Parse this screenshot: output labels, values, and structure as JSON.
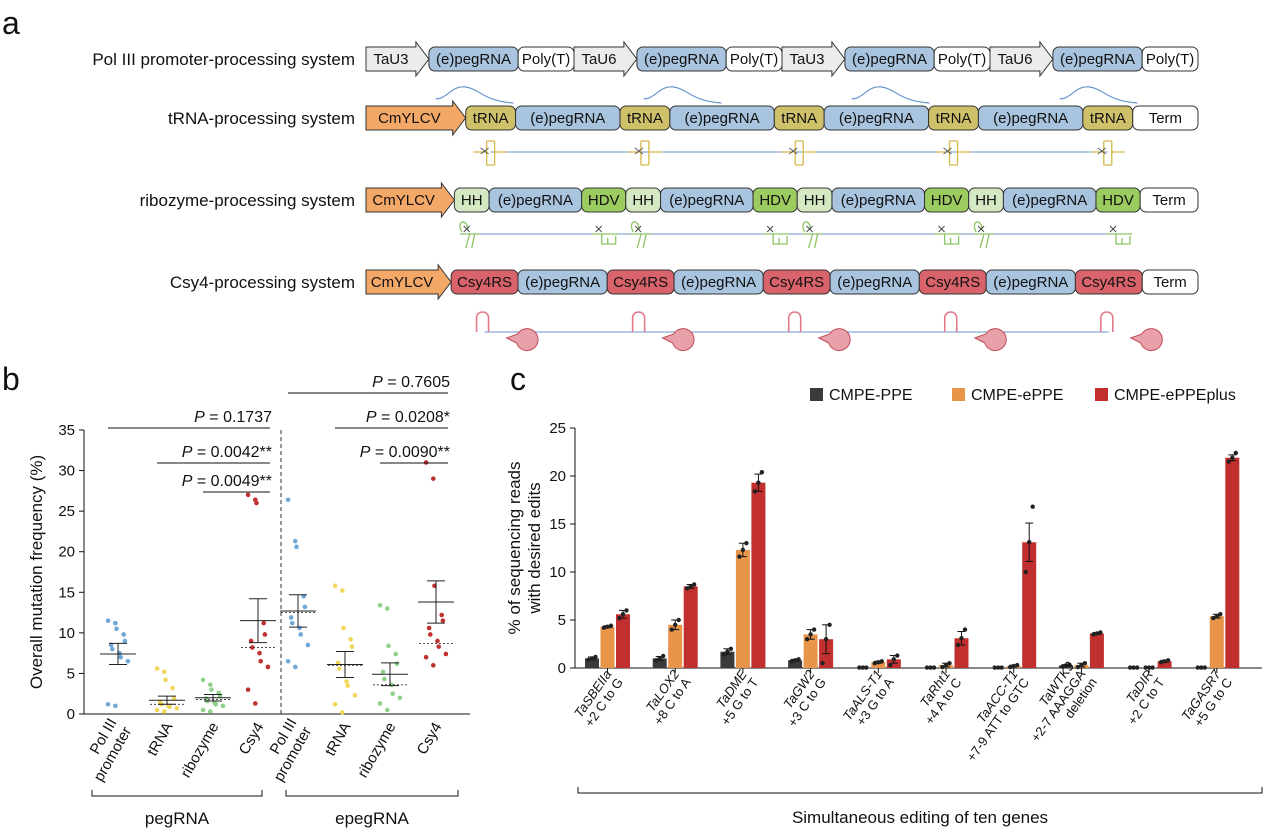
{
  "panels": {
    "a": "a",
    "b": "b",
    "c": "c"
  },
  "panel_a": {
    "rows": [
      {
        "label": "Pol III promoter-processing system",
        "segments": [
          {
            "text": "TaU3",
            "kind": "promoter"
          },
          {
            "text": "(e)pegRNA",
            "kind": "peg"
          },
          {
            "text": "Poly(T)",
            "kind": "term"
          },
          {
            "text": "TaU6",
            "kind": "promoter"
          },
          {
            "text": "(e)pegRNA",
            "kind": "peg"
          },
          {
            "text": "Poly(T)",
            "kind": "term"
          },
          {
            "text": "TaU3",
            "kind": "promoter"
          },
          {
            "text": "(e)pegRNA",
            "kind": "peg"
          },
          {
            "text": "Poly(T)",
            "kind": "term"
          },
          {
            "text": "TaU6",
            "kind": "promoter"
          },
          {
            "text": "(e)pegRNA",
            "kind": "peg"
          },
          {
            "text": "Poly(T)",
            "kind": "term"
          }
        ]
      },
      {
        "label": "tRNA-processing system",
        "segments": [
          {
            "text": "CmYLCV",
            "kind": "cmylcv"
          },
          {
            "text": "tRNA",
            "kind": "trna"
          },
          {
            "text": "(e)pegRNA",
            "kind": "peg"
          },
          {
            "text": "tRNA",
            "kind": "trna"
          },
          {
            "text": "(e)pegRNA",
            "kind": "peg"
          },
          {
            "text": "tRNA",
            "kind": "trna"
          },
          {
            "text": "(e)pegRNA",
            "kind": "peg"
          },
          {
            "text": "tRNA",
            "kind": "trna"
          },
          {
            "text": "(e)pegRNA",
            "kind": "peg"
          },
          {
            "text": "tRNA",
            "kind": "trna"
          },
          {
            "text": "Term",
            "kind": "term"
          }
        ]
      },
      {
        "label": "ribozyme-processing system",
        "segments": [
          {
            "text": "CmYLCV",
            "kind": "cmylcv"
          },
          {
            "text": "HH",
            "kind": "hh"
          },
          {
            "text": "(e)pegRNA",
            "kind": "peg"
          },
          {
            "text": "HDV",
            "kind": "hdv"
          },
          {
            "text": "HH",
            "kind": "hh"
          },
          {
            "text": "(e)pegRNA",
            "kind": "peg"
          },
          {
            "text": "HDV",
            "kind": "hdv"
          },
          {
            "text": "HH",
            "kind": "hh"
          },
          {
            "text": "(e)pegRNA",
            "kind": "peg"
          },
          {
            "text": "HDV",
            "kind": "hdv"
          },
          {
            "text": "HH",
            "kind": "hh"
          },
          {
            "text": "(e)pegRNA",
            "kind": "peg"
          },
          {
            "text": "HDV",
            "kind": "hdv"
          },
          {
            "text": "Term",
            "kind": "term"
          }
        ]
      },
      {
        "label": "Csy4-processing system",
        "segments": [
          {
            "text": "CmYLCV",
            "kind": "cmylcv"
          },
          {
            "text": "Csy4RS",
            "kind": "csy4"
          },
          {
            "text": "(e)pegRNA",
            "kind": "peg"
          },
          {
            "text": "Csy4RS",
            "kind": "csy4"
          },
          {
            "text": "(e)pegRNA",
            "kind": "peg"
          },
          {
            "text": "Csy4RS",
            "kind": "csy4"
          },
          {
            "text": "(e)pegRNA",
            "kind": "peg"
          },
          {
            "text": "Csy4RS",
            "kind": "csy4"
          },
          {
            "text": "(e)pegRNA",
            "kind": "peg"
          },
          {
            "text": "Csy4RS",
            "kind": "csy4"
          },
          {
            "text": "Term",
            "kind": "term"
          }
        ]
      }
    ],
    "colors": {
      "promoter": "#ececec",
      "peg": "#a9c4de",
      "term": "#ffffff",
      "cmylcv": "#f3a867",
      "trna": "#cfc06a",
      "hh": "#d4e8c4",
      "hdv": "#9ccc5f",
      "csy4": "#d9636b",
      "rna_line": "#6a95cc",
      "trna_glyph": "#d4b84a",
      "ribo_glyph": "#8cc466",
      "csy4_glyph": "#e07a8a"
    }
  },
  "chart_data": [
    {
      "type": "scatter",
      "panel": "b",
      "ylabel": "Overall mutation frequency (%)",
      "ylim": [
        0,
        35
      ],
      "yticks": [
        "0",
        "5",
        "10",
        "15",
        "20",
        "25",
        "30",
        "35"
      ],
      "categories": [
        "Pol III promoter",
        "tRNA",
        "ribozyme",
        "Csy4",
        "Pol III promoter",
        "tRNA",
        "ribozyme",
        "Csy4"
      ],
      "category_lines": [
        [
          "Pol III",
          "promoter"
        ],
        [
          "tRNA"
        ],
        [
          "ribozyme"
        ],
        [
          "Csy4"
        ],
        [
          "Pol III",
          "promoter"
        ],
        [
          "tRNA"
        ],
        [
          "ribozyme"
        ],
        [
          "Csy4"
        ]
      ],
      "groups": [
        "pegRNA",
        "epegRNA"
      ],
      "series_colors": [
        "#6fa8d6",
        "#f2d65a",
        "#8fd08a",
        "#c0302e",
        "#6fa8d6",
        "#f2d65a",
        "#8fd08a",
        "#c0302e"
      ],
      "points": [
        [
          11.5,
          11.2,
          10.5,
          9.8,
          9.0,
          8.5,
          8.0,
          7.5,
          7.0,
          6.5,
          1.2,
          1.0
        ],
        [
          5.6,
          5.2,
          4.2,
          3.2,
          1.9,
          1.5,
          1.2,
          1.0,
          0.9,
          0.7,
          0.5,
          0.3
        ],
        [
          4.2,
          3.6,
          3.0,
          2.6,
          2.2,
          1.9,
          1.6,
          1.4,
          1.2,
          1.0,
          0.5,
          0.3
        ],
        [
          27.0,
          26.4,
          26.0,
          11.2,
          9.8,
          9.0,
          8.2,
          7.5,
          6.5,
          5.8,
          3.0,
          1.3
        ],
        [
          26.4,
          21.3,
          20.6,
          14.5,
          13.2,
          11.9,
          11.2,
          10.6,
          9.8,
          8.5,
          6.5,
          5.8
        ],
        [
          15.8,
          15.2,
          10.6,
          9.2,
          8.3,
          6.3,
          5.6,
          4.0,
          3.5,
          2.3,
          1.2,
          0.2
        ],
        [
          13.4,
          13.0,
          8.4,
          7.4,
          6.2,
          5.2,
          4.3,
          3.6,
          2.5,
          2.0,
          1.3,
          0.5
        ],
        [
          31.0,
          29.0,
          15.8,
          12.2,
          11.5,
          10.6,
          9.8,
          9.0,
          8.3,
          7.4,
          7.0,
          6.0
        ]
      ],
      "means": [
        7.4,
        1.7,
        2.0,
        11.5,
        12.7,
        6.1,
        4.9,
        13.8
      ],
      "sem": [
        1.3,
        0.5,
        0.4,
        2.7,
        2.0,
        1.6,
        1.4,
        2.6
      ],
      "medians": [
        7.4,
        1.2,
        1.8,
        8.2,
        12.5,
        6.0,
        3.6,
        8.7
      ],
      "comparisons": [
        {
          "label": "P = 0.1737",
          "prefix": "P",
          "rest": " = 0.1737",
          "from": 0,
          "to": 3
        },
        {
          "label": "P = 0.0042**",
          "prefix": "P",
          "rest": " = 0.0042**",
          "from": 1,
          "to": 3
        },
        {
          "label": "P = 0.0049**",
          "prefix": "P",
          "rest": " = 0.0049**",
          "from": 2,
          "to": 3
        },
        {
          "label": "P = 0.7605",
          "prefix": "P",
          "rest": " = 0.7605",
          "from": 4,
          "to": 7
        },
        {
          "label": "P = 0.0208*",
          "prefix": "P",
          "rest": " = 0.0208*",
          "from": 5,
          "to": 7
        },
        {
          "label": "P = 0.0090**",
          "prefix": "P",
          "rest": " = 0.0090**",
          "from": 6,
          "to": 7
        }
      ]
    },
    {
      "type": "bar",
      "panel": "c",
      "ylabel_lines": [
        "% of sequencing reads",
        "with desired edits"
      ],
      "xlabel": "Simultaneous editing of ten genes",
      "ylim": [
        0,
        25
      ],
      "yticks": [
        "0",
        "5",
        "10",
        "15",
        "20",
        "25"
      ],
      "categories": [
        {
          "gene": "TaSBEIIa",
          "edit": "+2 C to G"
        },
        {
          "gene": "TaLOX2",
          "edit": "+8 C to A"
        },
        {
          "gene": "TaDME",
          "edit": "+5 G to T"
        },
        {
          "gene": "TaGW2",
          "edit": "+3 C to G"
        },
        {
          "gene": "TaALS-T1",
          "edit": "+3 G to A"
        },
        {
          "gene": "TaRht1",
          "edit": "+4 A to C"
        },
        {
          "gene": "TaACC-T1",
          "edit": "+7-9 ATT to GTC"
        },
        {
          "gene": "TaWTK3",
          "edit": "+2-7 AAAGGA",
          "edit2": "deletion"
        },
        {
          "gene": "TaDIR",
          "edit": "+2 C to T"
        },
        {
          "gene": "TaGASR7",
          "edit": "+5 G to C"
        }
      ],
      "series": [
        {
          "name": "CMPE-PPE",
          "color": "#3a3a3a",
          "values": [
            1.0,
            1.0,
            1.7,
            0.8,
            0.05,
            0.05,
            0.05,
            0.25,
            0.05,
            0.05
          ],
          "errors": [
            0.15,
            0.2,
            0.3,
            0.1,
            0.0,
            0.0,
            0.0,
            0.1,
            0.0,
            0.0
          ],
          "points": [
            [
              0.85,
              1.0,
              1.15
            ],
            [
              0.8,
              1.0,
              1.25
            ],
            [
              1.4,
              1.7,
              2.0
            ],
            [
              0.7,
              0.8,
              0.9
            ],
            [
              0.05,
              0.05,
              0.05
            ],
            [
              0.05,
              0.05,
              0.05
            ],
            [
              0.05,
              0.05,
              0.05
            ],
            [
              0.15,
              0.25,
              0.35
            ],
            [
              0.05,
              0.05,
              0.05
            ],
            [
              0.05,
              0.05,
              0.05
            ]
          ]
        },
        {
          "name": "CMPE-ePPE",
          "color": "#e8954a",
          "values": [
            4.3,
            4.5,
            12.3,
            3.5,
            0.6,
            0.3,
            0.2,
            0.3,
            0.05,
            5.4
          ],
          "errors": [
            0.1,
            0.5,
            0.7,
            0.5,
            0.1,
            0.2,
            0.1,
            0.2,
            0.0,
            0.2
          ],
          "points": [
            [
              4.2,
              4.3,
              4.4
            ],
            [
              4.0,
              4.5,
              5.0
            ],
            [
              11.6,
              12.3,
              13.0
            ],
            [
              3.0,
              3.5,
              4.0
            ],
            [
              0.5,
              0.6,
              0.7
            ],
            [
              0.1,
              0.3,
              0.5
            ],
            [
              0.1,
              0.2,
              0.3
            ],
            [
              0.1,
              0.3,
              0.5
            ],
            [
              0.05,
              0.05,
              0.05
            ],
            [
              5.2,
              5.4,
              5.6
            ]
          ]
        },
        {
          "name": "CMPE-ePPEplus",
          "color": "#c1302e",
          "values": [
            5.6,
            8.5,
            19.3,
            3.0,
            0.9,
            3.1,
            13.1,
            3.6,
            0.7,
            21.9
          ],
          "errors": [
            0.4,
            0.2,
            0.9,
            1.5,
            0.4,
            0.7,
            2.0,
            0.1,
            0.1,
            0.3
          ],
          "points": [
            [
              5.2,
              5.6,
              6.0
            ],
            [
              8.3,
              8.5,
              8.7
            ],
            [
              18.4,
              19.3,
              20.4
            ],
            [
              0.5,
              3.0,
              4.5
            ],
            [
              0.3,
              0.9,
              1.3
            ],
            [
              2.4,
              3.1,
              4.0
            ],
            [
              10.0,
              13.1,
              16.8
            ],
            [
              3.5,
              3.6,
              3.7
            ],
            [
              0.6,
              0.7,
              0.8
            ],
            [
              21.5,
              21.9,
              22.4
            ]
          ]
        }
      ],
      "legend": [
        "CMPE-PPE",
        "CMPE-ePPE",
        "CMPE-ePPEplus"
      ]
    }
  ]
}
